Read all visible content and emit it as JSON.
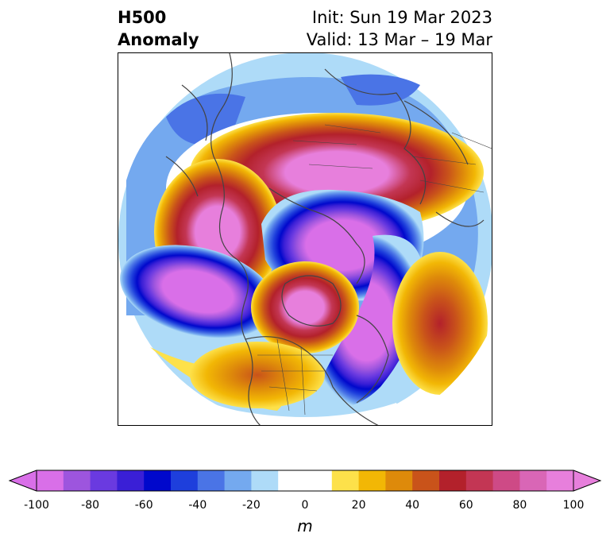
{
  "header": {
    "title_line1": "H500",
    "title_line2": "Anomaly",
    "init": "Init: Sun 19 Mar 2023",
    "valid": "Valid: 13 Mar – 19 Mar"
  },
  "colorbar": {
    "unit": "m",
    "range": [
      -100,
      100
    ],
    "step": 10,
    "ticks": [
      "-100",
      "-80",
      "-60",
      "-40",
      "-20",
      "0",
      "20",
      "40",
      "60",
      "80",
      "100"
    ],
    "colors": [
      "#d96fe8",
      "#9d55de",
      "#6a3ae0",
      "#3a1fd6",
      "#0008cc",
      "#1e3fdc",
      "#4a74e6",
      "#74a9ef",
      "#aedbf8",
      "#ffffff",
      "#ffffff",
      "#fde14a",
      "#f2b705",
      "#de8a0a",
      "#c9531a",
      "#b3212b",
      "#c33654",
      "#ce4a86",
      "#d966b6",
      "#e77fdc"
    ],
    "low_extend": "#d96fe8",
    "high_extend": "#e77fdc"
  }
}
